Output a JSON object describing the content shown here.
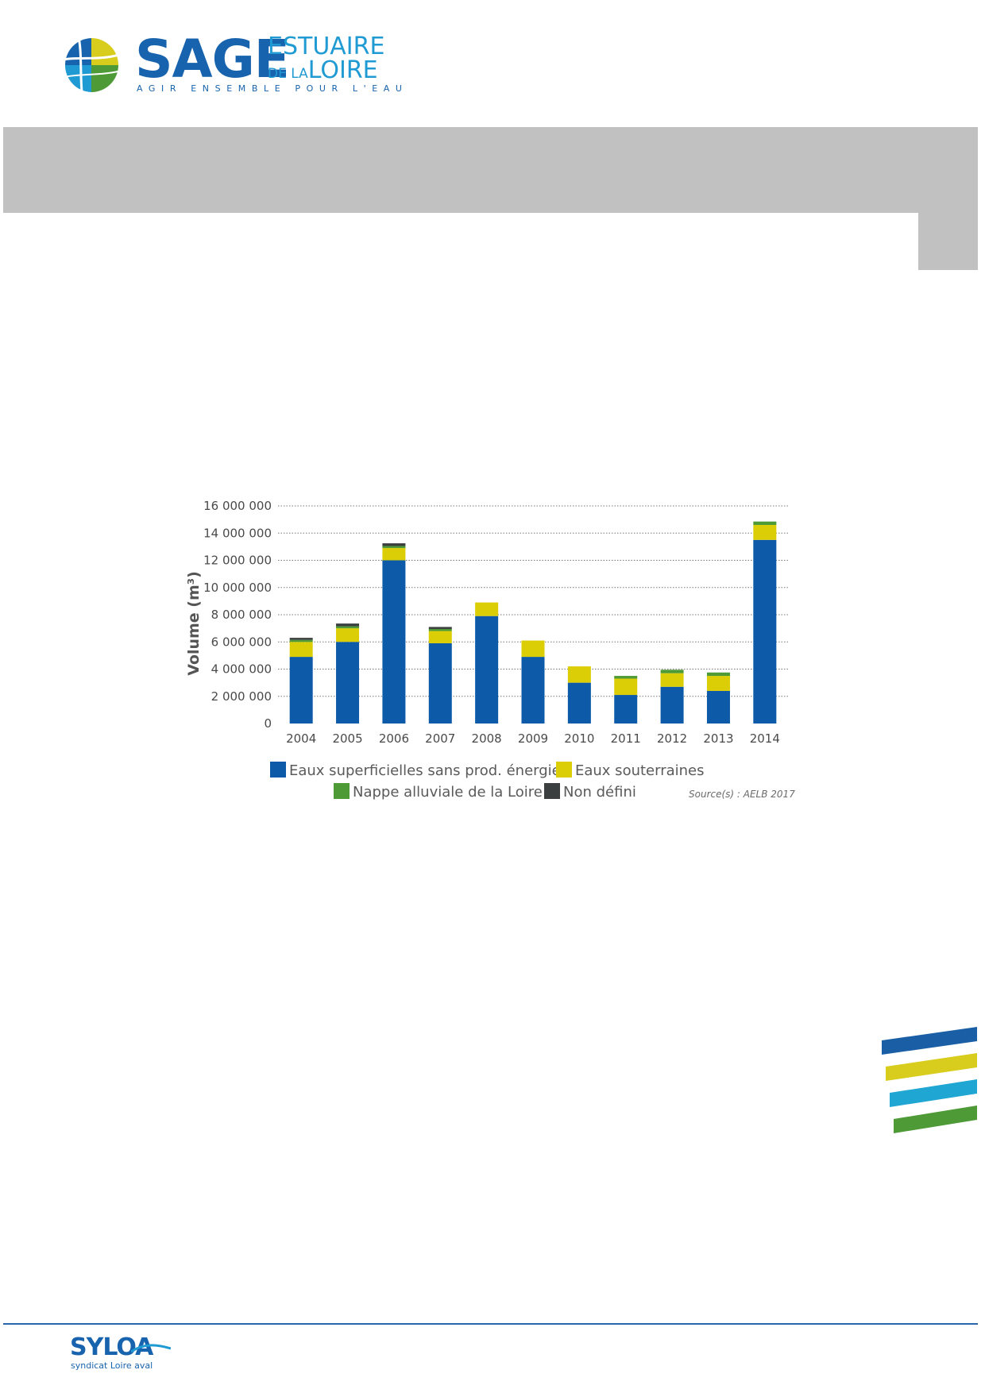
{
  "header": {
    "logo_word": "SAGE",
    "logo_estuaire": "ESTUAIRE",
    "logo_de_la": "DE LA",
    "logo_loire": "LOIRE",
    "tagline": "AGIR ENSEMBLE POUR L'EAU"
  },
  "colors": {
    "brand_blue": "#1763ad",
    "brand_cyan": "#1f9ad3",
    "band_grey": "#c1c1c1",
    "stripe_blue": "#1a5ea6",
    "stripe_yellow": "#d8cc1c",
    "stripe_cyan": "#1fa6d3",
    "stripe_green": "#4e9a36"
  },
  "chart_data": {
    "type": "bar",
    "stacked": true,
    "title": "",
    "xlabel": "",
    "ylabel": "Volume (m³)",
    "ylim": [
      0,
      16000000
    ],
    "yticks": [
      0,
      2000000,
      4000000,
      6000000,
      8000000,
      10000000,
      12000000,
      14000000,
      16000000
    ],
    "ytick_labels": [
      "0",
      "2 000 000",
      "4 000 000",
      "6 000 000",
      "8 000 000",
      "10 000 000",
      "12 000 000",
      "14 000 000",
      "16 000 000"
    ],
    "grid": "horizontal dotted",
    "legend_position": "bottom",
    "categories": [
      "2004",
      "2005",
      "2006",
      "2007",
      "2008",
      "2009",
      "2010",
      "2011",
      "2012",
      "2013",
      "2014"
    ],
    "series": [
      {
        "name": "Eaux superficielles sans prod. énergie",
        "color": "#0c5aa8",
        "values": [
          4900000,
          6000000,
          12000000,
          5900000,
          7900000,
          4900000,
          3000000,
          2100000,
          2700000,
          2400000,
          13500000
        ]
      },
      {
        "name": "Eaux souterraines",
        "color": "#dbcd06",
        "values": [
          1100000,
          1000000,
          900000,
          900000,
          1000000,
          1200000,
          1200000,
          1200000,
          1000000,
          1100000,
          1100000
        ]
      },
      {
        "name": "Nappe alluviale de la Loire",
        "color": "#4e9a36",
        "values": [
          150000,
          150000,
          150000,
          150000,
          0,
          0,
          0,
          200000,
          250000,
          250000,
          250000
        ]
      },
      {
        "name": "Non défini",
        "color": "#3b3f40",
        "values": [
          150000,
          200000,
          200000,
          150000,
          0,
          0,
          0,
          0,
          0,
          0,
          0
        ]
      }
    ],
    "source": "Source(s) : AELB 2017"
  },
  "footer": {
    "logo_word": "SYLOA",
    "logo_sub": "syndicat Loire aval"
  }
}
